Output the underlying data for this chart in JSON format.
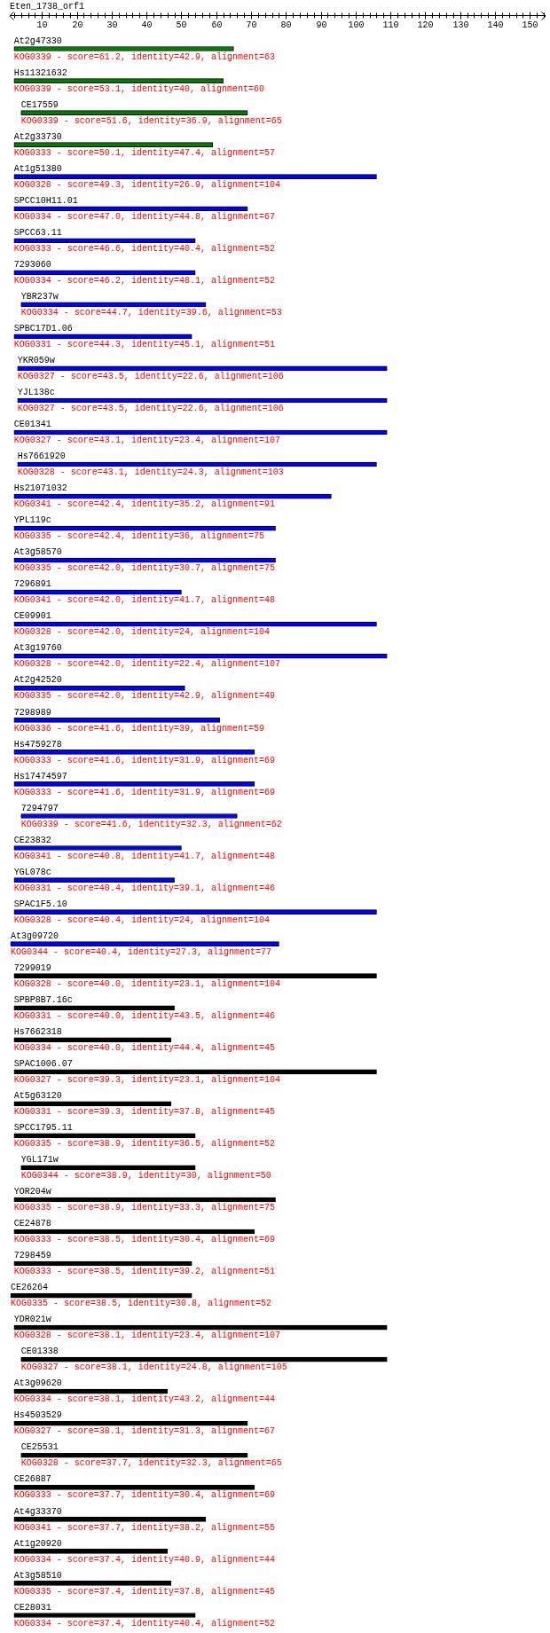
{
  "chart_data": {
    "type": "bar",
    "orientation": "horizontal",
    "title": "Eten_1738_orf1",
    "categories": [
      "At2g47330",
      "Hs11321632",
      "CE17559",
      "At2g33730",
      "At1g51380",
      "SPCC10H11.01",
      "SPCC63.11",
      "7293060",
      "YBR237w",
      "SPBC17D1.06",
      "YKR059w",
      "YJL138c",
      "CE01341",
      "Hs7661920",
      "Hs21071032",
      "YPL119c",
      "At3g58570",
      "7296891",
      "CE09901",
      "At3g19760",
      "At2g42520",
      "7298989",
      "Hs4759278",
      "Hs17474597",
      "7294797",
      "CE23832",
      "YGL078c",
      "SPAC1F5.10",
      "At3g09720",
      "7299019",
      "SPBP8B7.16c",
      "Hs7662318",
      "SPAC1006.07",
      "At5g63120",
      "SPCC1795.11",
      "YGL171w",
      "YOR204w",
      "CE24878",
      "7298459",
      "CE26264",
      "YDR021w",
      "CE01338",
      "At3g09620",
      "Hs4503529",
      "CE25531",
      "CE26887",
      "At4g33370",
      "At1g20920",
      "At3g58510",
      "CE28031"
    ],
    "base": [
      2,
      2,
      4,
      2,
      2,
      2,
      2,
      2,
      4,
      2,
      3,
      3,
      2,
      3,
      2,
      2,
      2,
      2,
      2,
      2,
      2,
      2,
      2,
      2,
      4,
      2,
      2,
      2,
      1,
      2,
      2,
      2,
      2,
      2,
      2,
      4,
      2,
      2,
      2,
      1,
      2,
      4,
      2,
      2,
      4,
      2,
      2,
      2,
      2,
      2
    ],
    "values": [
      63,
      60,
      65,
      57,
      104,
      67,
      52,
      52,
      53,
      51,
      106,
      106,
      107,
      103,
      91,
      75,
      75,
      48,
      104,
      107,
      49,
      59,
      69,
      69,
      62,
      48,
      46,
      104,
      77,
      104,
      46,
      45,
      104,
      45,
      52,
      50,
      75,
      69,
      51,
      52,
      107,
      105,
      44,
      67,
      65,
      69,
      55,
      44,
      45,
      52
    ],
    "colors": [
      "#008000",
      "#008000",
      "#008000",
      "#008000",
      "#0000ff",
      "#0000ff",
      "#0000ff",
      "#0000ff",
      "#0000ff",
      "#0000ff",
      "#0000ff",
      "#0000ff",
      "#0000ff",
      "#0000ff",
      "#0000ff",
      "#0000ff",
      "#0000ff",
      "#0000ff",
      "#0000ff",
      "#0000ff",
      "#0000ff",
      "#0000ff",
      "#0000ff",
      "#0000ff",
      "#0000ff",
      "#0000ff",
      "#0000ff",
      "#0000ff",
      "#0000ff",
      "#000000",
      "#000000",
      "#000000",
      "#000000",
      "#000000",
      "#000000",
      "#000000",
      "#000000",
      "#000000",
      "#000000",
      "#000000",
      "#000000",
      "#000000",
      "#000000",
      "#000000",
      "#000000",
      "#000000",
      "#000000",
      "#000000",
      "#000000",
      "#000000"
    ],
    "value_labels": [
      "KOG0339 - score=61.2, identity=42.9, alignment=63",
      "KOG0339 - score=53.1, identity=40, alignment=60",
      "KOG0339 - score=51.6, identity=36.9, alignment=65",
      "KOG0333 - score=50.1, identity=47.4, alignment=57",
      "KOG0328 - score=49.3, identity=26.9, alignment=104",
      "KOG0334 - score=47.0, identity=44.8, alignment=67",
      "KOG0333 - score=46.6, identity=40.4, alignment=52",
      "KOG0334 - score=46.2, identity=48.1, alignment=52",
      "KOG0334 - score=44.7, identity=39.6, alignment=53",
      "KOG0331 - score=44.3, identity=45.1, alignment=51",
      "KOG0327 - score=43.5, identity=22.6, alignment=106",
      "KOG0327 - score=43.5, identity=22.6, alignment=106",
      "KOG0327 - score=43.1, identity=23.4, alignment=107",
      "KOG0328 - score=43.1, identity=24.3, alignment=103",
      "KOG0341 - score=42.4, identity=35.2, alignment=91",
      "KOG0335 - score=42.4, identity=36, alignment=75",
      "KOG0335 - score=42.0, identity=30.7, alignment=75",
      "KOG0341 - score=42.0, identity=41.7, alignment=48",
      "KOG0328 - score=42.0, identity=24, alignment=104",
      "KOG0328 - score=42.0, identity=22.4, alignment=107",
      "KOG0335 - score=42.0, identity=42.9, alignment=49",
      "KOG0336 - score=41.6, identity=39, alignment=59",
      "KOG0333 - score=41.6, identity=31.9, alignment=69",
      "KOG0333 - score=41.6, identity=31.9, alignment=69",
      "KOG0339 - score=41.6, identity=32.3, alignment=62",
      "KOG0341 - score=40.8, identity=41.7, alignment=48",
      "KOG0331 - score=40.4, identity=39.1, alignment=46",
      "KOG0328 - score=40.4, identity=24, alignment=104",
      "KOG0344 - score=40.4, identity=27.3, alignment=77",
      "KOG0328 - score=40.0, identity=23.1, alignment=104",
      "KOG0331 - score=40.0, identity=43.5, alignment=46",
      "KOG0334 - score=40.0, identity=44.4, alignment=45",
      "KOG0327 - score=39.3, identity=23.1, alignment=104",
      "KOG0331 - score=39.3, identity=37.8, alignment=45",
      "KOG0335 - score=38.9, identity=36.5, alignment=52",
      "KOG0344 - score=38.9, identity=30, alignment=50",
      "KOG0335 - score=38.9, identity=33.3, alignment=75",
      "KOG0333 - score=38.5, identity=30.4, alignment=69",
      "KOG0333 - score=38.5, identity=39.2, alignment=51",
      "KOG0335 - score=38.5, identity=30.8, alignment=52",
      "KOG0328 - score=38.1, identity=23.4, alignment=107",
      "KOG0327 - score=38.1, identity=24.8, alignment=105",
      "KOG0334 - score=38.1, identity=43.2, alignment=44",
      "KOG0327 - score=38.1, identity=31.3, alignment=67",
      "KOG0328 - score=37.7, identity=32.3, alignment=65",
      "KOG0333 - score=37.7, identity=30.4, alignment=69",
      "KOG0341 - score=37.7, identity=38.2, alignment=55",
      "KOG0334 - score=37.4, identity=40.9, alignment=44",
      "KOG0335 - score=37.4, identity=37.8, alignment=45",
      "KOG0334 - score=37.4, identity=40.4, alignment=52"
    ],
    "xlim": [
      0,
      155
    ],
    "xticks": [
      {
        "value": 2,
        "label": null
      },
      {
        "value": 4,
        "label": null
      },
      {
        "value": 6,
        "label": null
      },
      {
        "value": 8,
        "label": null
      },
      10,
      {
        "value": 12,
        "label": null
      },
      {
        "value": 14,
        "label": null
      },
      {
        "value": 16,
        "label": null
      },
      {
        "value": 18,
        "label": null
      },
      20,
      {
        "value": 22,
        "label": null
      },
      {
        "value": 24,
        "label": null
      },
      {
        "value": 26,
        "label": null
      },
      {
        "value": 28,
        "label": null
      },
      30,
      {
        "value": 32,
        "label": null
      },
      {
        "value": 34,
        "label": null
      },
      {
        "value": 36,
        "label": null
      },
      {
        "value": 38,
        "label": null
      },
      40,
      {
        "value": 42,
        "label": null
      },
      {
        "value": 44,
        "label": null
      },
      {
        "value": 46,
        "label": null
      },
      {
        "value": 48,
        "label": null
      },
      50,
      {
        "value": 52,
        "label": null
      },
      {
        "value": 54,
        "label": null
      },
      {
        "value": 56,
        "label": null
      },
      {
        "value": 58,
        "label": null
      },
      60,
      {
        "value": 62,
        "label": null
      },
      {
        "value": 64,
        "label": null
      },
      {
        "value": 66,
        "label": null
      },
      {
        "value": 68,
        "label": null
      },
      70,
      {
        "value": 72,
        "label": null
      },
      {
        "value": 74,
        "label": null
      },
      {
        "value": 76,
        "label": null
      },
      {
        "value": 78,
        "label": null
      },
      80,
      {
        "value": 82,
        "label": null
      },
      {
        "value": 84,
        "label": null
      },
      {
        "value": 86,
        "label": null
      },
      {
        "value": 88,
        "label": null
      },
      90,
      {
        "value": 92,
        "label": null
      },
      {
        "value": 94,
        "label": null
      },
      {
        "value": 96,
        "label": null
      },
      {
        "value": 98,
        "label": null
      },
      100,
      {
        "value": 102,
        "label": null
      },
      {
        "value": 104,
        "label": null
      },
      {
        "value": 106,
        "label": null
      },
      {
        "value": 108,
        "label": null
      },
      110,
      {
        "value": 112,
        "label": null
      },
      {
        "value": 114,
        "label": null
      },
      {
        "value": 116,
        "label": null
      },
      {
        "value": 118,
        "label": null
      },
      120,
      {
        "value": 122,
        "label": null
      },
      {
        "value": 124,
        "label": null
      },
      {
        "value": 126,
        "label": null
      },
      {
        "value": 128,
        "label": null
      },
      130,
      {
        "value": 132,
        "label": null
      },
      {
        "value": 134,
        "label": null
      },
      {
        "value": 136,
        "label": null
      },
      {
        "value": 138,
        "label": null
      },
      140,
      {
        "value": 142,
        "label": null
      },
      {
        "value": 144,
        "label": null
      },
      {
        "value": 146,
        "label": null
      },
      {
        "value": 148,
        "label": null
      },
      150,
      {
        "value": 152,
        "label": null
      },
      {
        "value": 154,
        "label": null
      }
    ],
    "legend": false
  }
}
